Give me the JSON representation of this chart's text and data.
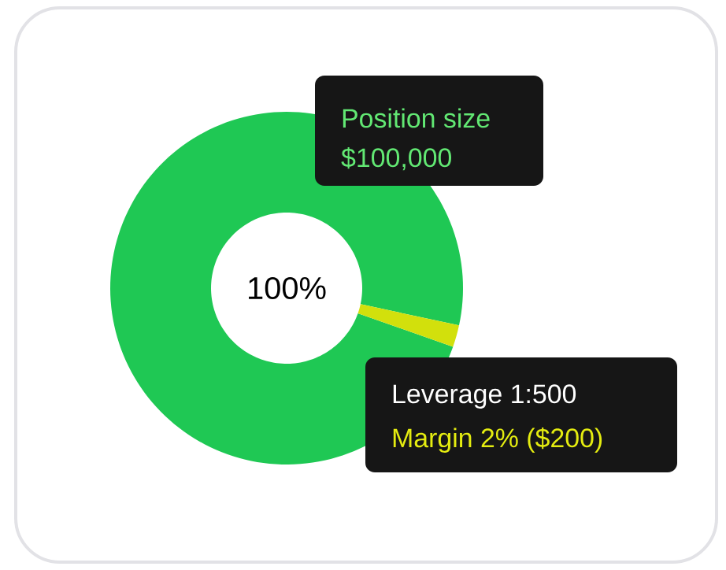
{
  "chart_data": {
    "type": "donut",
    "categories": [
      "Position size",
      null
    ],
    "values": [
      98,
      2
    ],
    "colors": [
      "#1fc854",
      "#d2e00c"
    ],
    "annotations": [
      "100%",
      "$100,000",
      "Leverage 1:500",
      "Margin 2% ($200)"
    ]
  }
}
